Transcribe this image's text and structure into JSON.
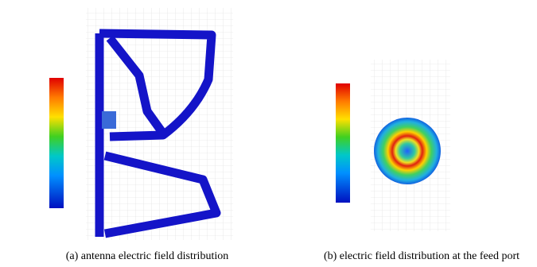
{
  "figure": {
    "panels": [
      {
        "caption": "(a) antenna electric field distribution"
      },
      {
        "caption": "(b) electric field distribution at the feed port"
      }
    ]
  }
}
